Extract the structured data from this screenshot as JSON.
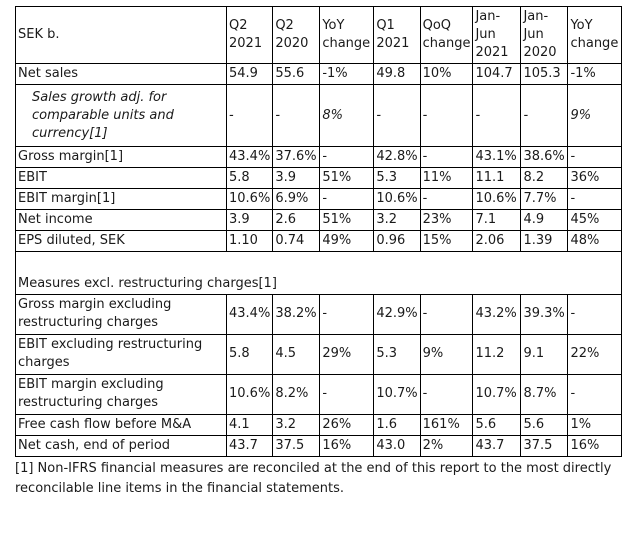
{
  "table": {
    "header": [
      "SEK b.",
      "Q2 2021",
      "Q2 2020",
      "YoY change",
      "Q1 2021",
      "QoQ change",
      "Jan-Jun 2021",
      "Jan-Jun 2020",
      "YoY change"
    ],
    "rows": [
      {
        "label": "Net sales",
        "cells": [
          "54.9",
          "55.6",
          "-1%",
          "49.8",
          "10%",
          "104.7",
          "105.3",
          "-1%"
        ]
      },
      {
        "label": "Sales growth adj. for comparable units and currency[1]",
        "italic": true,
        "cells": [
          "-",
          "-",
          "8%",
          "-",
          "-",
          "-",
          "-",
          "9%"
        ]
      },
      {
        "label": "Gross margin[1]",
        "cells": [
          "43.4%",
          "37.6%",
          "-",
          "42.8%",
          "-",
          "43.1%",
          "38.6%",
          "-"
        ]
      },
      {
        "label": "EBIT",
        "cells": [
          "5.8",
          "3.9",
          "51%",
          "5.3",
          "11%",
          "11.1",
          "8.2",
          "36%"
        ]
      },
      {
        "label": "EBIT margin[1]",
        "cells": [
          "10.6%",
          "6.9%",
          "-",
          "10.6%",
          "-",
          "10.6%",
          "7.7%",
          "-"
        ]
      },
      {
        "label": "Net income",
        "cells": [
          "3.9",
          "2.6",
          "51%",
          "3.2",
          "23%",
          "7.1",
          "4.9",
          "45%"
        ]
      },
      {
        "label": "EPS diluted, SEK",
        "cells": [
          "1.10",
          "0.74",
          "49%",
          "0.96",
          "15%",
          "2.06",
          "1.39",
          "48%"
        ]
      }
    ],
    "section_title": "Measures excl. restructuring charges[1]",
    "rows2": [
      {
        "label": "Gross margin excluding restructuring charges",
        "cells": [
          "43.4%",
          "38.2%",
          "-",
          "42.9%",
          "-",
          "43.2%",
          "39.3%",
          "-"
        ]
      },
      {
        "label": "EBIT excluding restructuring charges",
        "cells": [
          "5.8",
          "4.5",
          "29%",
          "5.3",
          "9%",
          "11.2",
          "9.1",
          "22%"
        ]
      },
      {
        "label": "EBIT margin excluding restructuring charges",
        "cells": [
          "10.6%",
          "8.2%",
          "-",
          "10.7%",
          "-",
          "10.7%",
          "8.7%",
          "-"
        ]
      },
      {
        "label": "Free cash flow before M&A",
        "cells": [
          "4.1",
          "3.2",
          "26%",
          "1.6",
          "161%",
          "5.6",
          "5.6",
          "1%"
        ]
      },
      {
        "label": "Net cash, end of period",
        "cells": [
          "43.7",
          "37.5",
          "16%",
          "43.0",
          "2%",
          "43.7",
          "37.5",
          "16%"
        ]
      }
    ]
  },
  "footnote": "[1] Non-IFRS financial measures are reconciled at the end of this report to the most directly reconcilable line items in the financial statements."
}
